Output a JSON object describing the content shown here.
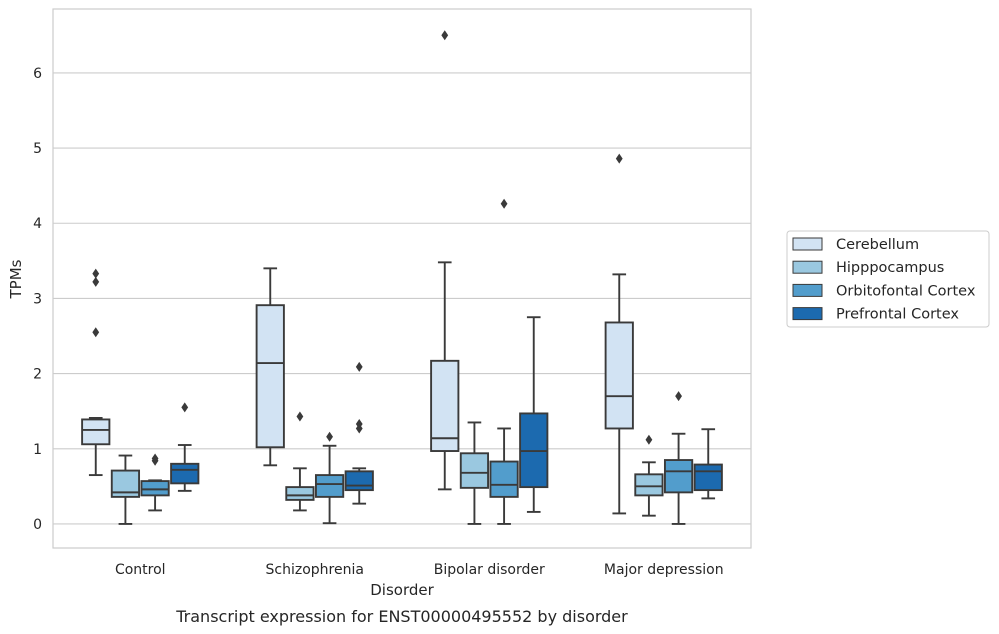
{
  "caption": "Transcript expression for ENST00000495552 by disorder",
  "chart_data": {
    "type": "box",
    "title": "",
    "xlabel": "Disorder",
    "ylabel": "TPMs",
    "ylim": [
      -0.32,
      6.85
    ],
    "yticks": [
      0,
      1,
      2,
      3,
      4,
      5,
      6
    ],
    "grid": "horizontal",
    "legend_position": "right",
    "categories": [
      "Control",
      "Schizophrenia",
      "Bipolar disorder",
      "Major depression"
    ],
    "series": [
      {
        "name": "Cerebellum",
        "color": "#d2e3f3",
        "boxes": [
          {
            "whislo": 0.65,
            "q1": 1.06,
            "med": 1.25,
            "q3": 1.39,
            "whishi": 1.41,
            "fliers": [
              2.55,
              3.22,
              3.33
            ]
          },
          {
            "whislo": 0.78,
            "q1": 1.02,
            "med": 2.14,
            "q3": 2.91,
            "whishi": 3.4,
            "fliers": []
          },
          {
            "whislo": 0.46,
            "q1": 0.97,
            "med": 1.14,
            "q3": 2.17,
            "whishi": 3.48,
            "fliers": [
              6.5
            ]
          },
          {
            "whislo": 0.14,
            "q1": 1.27,
            "med": 1.7,
            "q3": 2.68,
            "whishi": 3.32,
            "fliers": [
              4.86
            ]
          }
        ]
      },
      {
        "name": "Hipppocampus",
        "color": "#9ac8e0",
        "boxes": [
          {
            "whislo": 0.0,
            "q1": 0.36,
            "med": 0.42,
            "q3": 0.71,
            "whishi": 0.91,
            "fliers": []
          },
          {
            "whislo": 0.18,
            "q1": 0.32,
            "med": 0.38,
            "q3": 0.49,
            "whishi": 0.74,
            "fliers": [
              1.43
            ]
          },
          {
            "whislo": 0.0,
            "q1": 0.48,
            "med": 0.68,
            "q3": 0.94,
            "whishi": 1.35,
            "fliers": []
          },
          {
            "whislo": 0.11,
            "q1": 0.38,
            "med": 0.5,
            "q3": 0.66,
            "whishi": 0.82,
            "fliers": [
              1.12
            ]
          }
        ]
      },
      {
        "name": "Orbitofontal Cortex",
        "color": "#529dcc",
        "boxes": [
          {
            "whislo": 0.18,
            "q1": 0.38,
            "med": 0.46,
            "q3": 0.57,
            "whishi": 0.58,
            "fliers": [
              0.84,
              0.87
            ]
          },
          {
            "whislo": 0.01,
            "q1": 0.36,
            "med": 0.53,
            "q3": 0.65,
            "whishi": 1.04,
            "fliers": [
              1.16
            ]
          },
          {
            "whislo": 0.0,
            "q1": 0.36,
            "med": 0.52,
            "q3": 0.83,
            "whishi": 1.27,
            "fliers": [
              4.26
            ]
          },
          {
            "whislo": 0.0,
            "q1": 0.42,
            "med": 0.7,
            "q3": 0.85,
            "whishi": 1.2,
            "fliers": [
              1.7
            ]
          }
        ]
      },
      {
        "name": "Prefrontal Cortex",
        "color": "#1c6aaf",
        "boxes": [
          {
            "whislo": 0.44,
            "q1": 0.54,
            "med": 0.72,
            "q3": 0.8,
            "whishi": 1.05,
            "fliers": [
              1.55
            ]
          },
          {
            "whislo": 0.27,
            "q1": 0.45,
            "med": 0.51,
            "q3": 0.7,
            "whishi": 0.74,
            "fliers": [
              1.27,
              1.33,
              2.09
            ]
          },
          {
            "whislo": 0.16,
            "q1": 0.49,
            "med": 0.97,
            "q3": 1.47,
            "whishi": 2.75,
            "fliers": []
          },
          {
            "whislo": 0.34,
            "q1": 0.45,
            "med": 0.7,
            "q3": 0.79,
            "whishi": 1.26,
            "fliers": []
          }
        ]
      }
    ]
  }
}
